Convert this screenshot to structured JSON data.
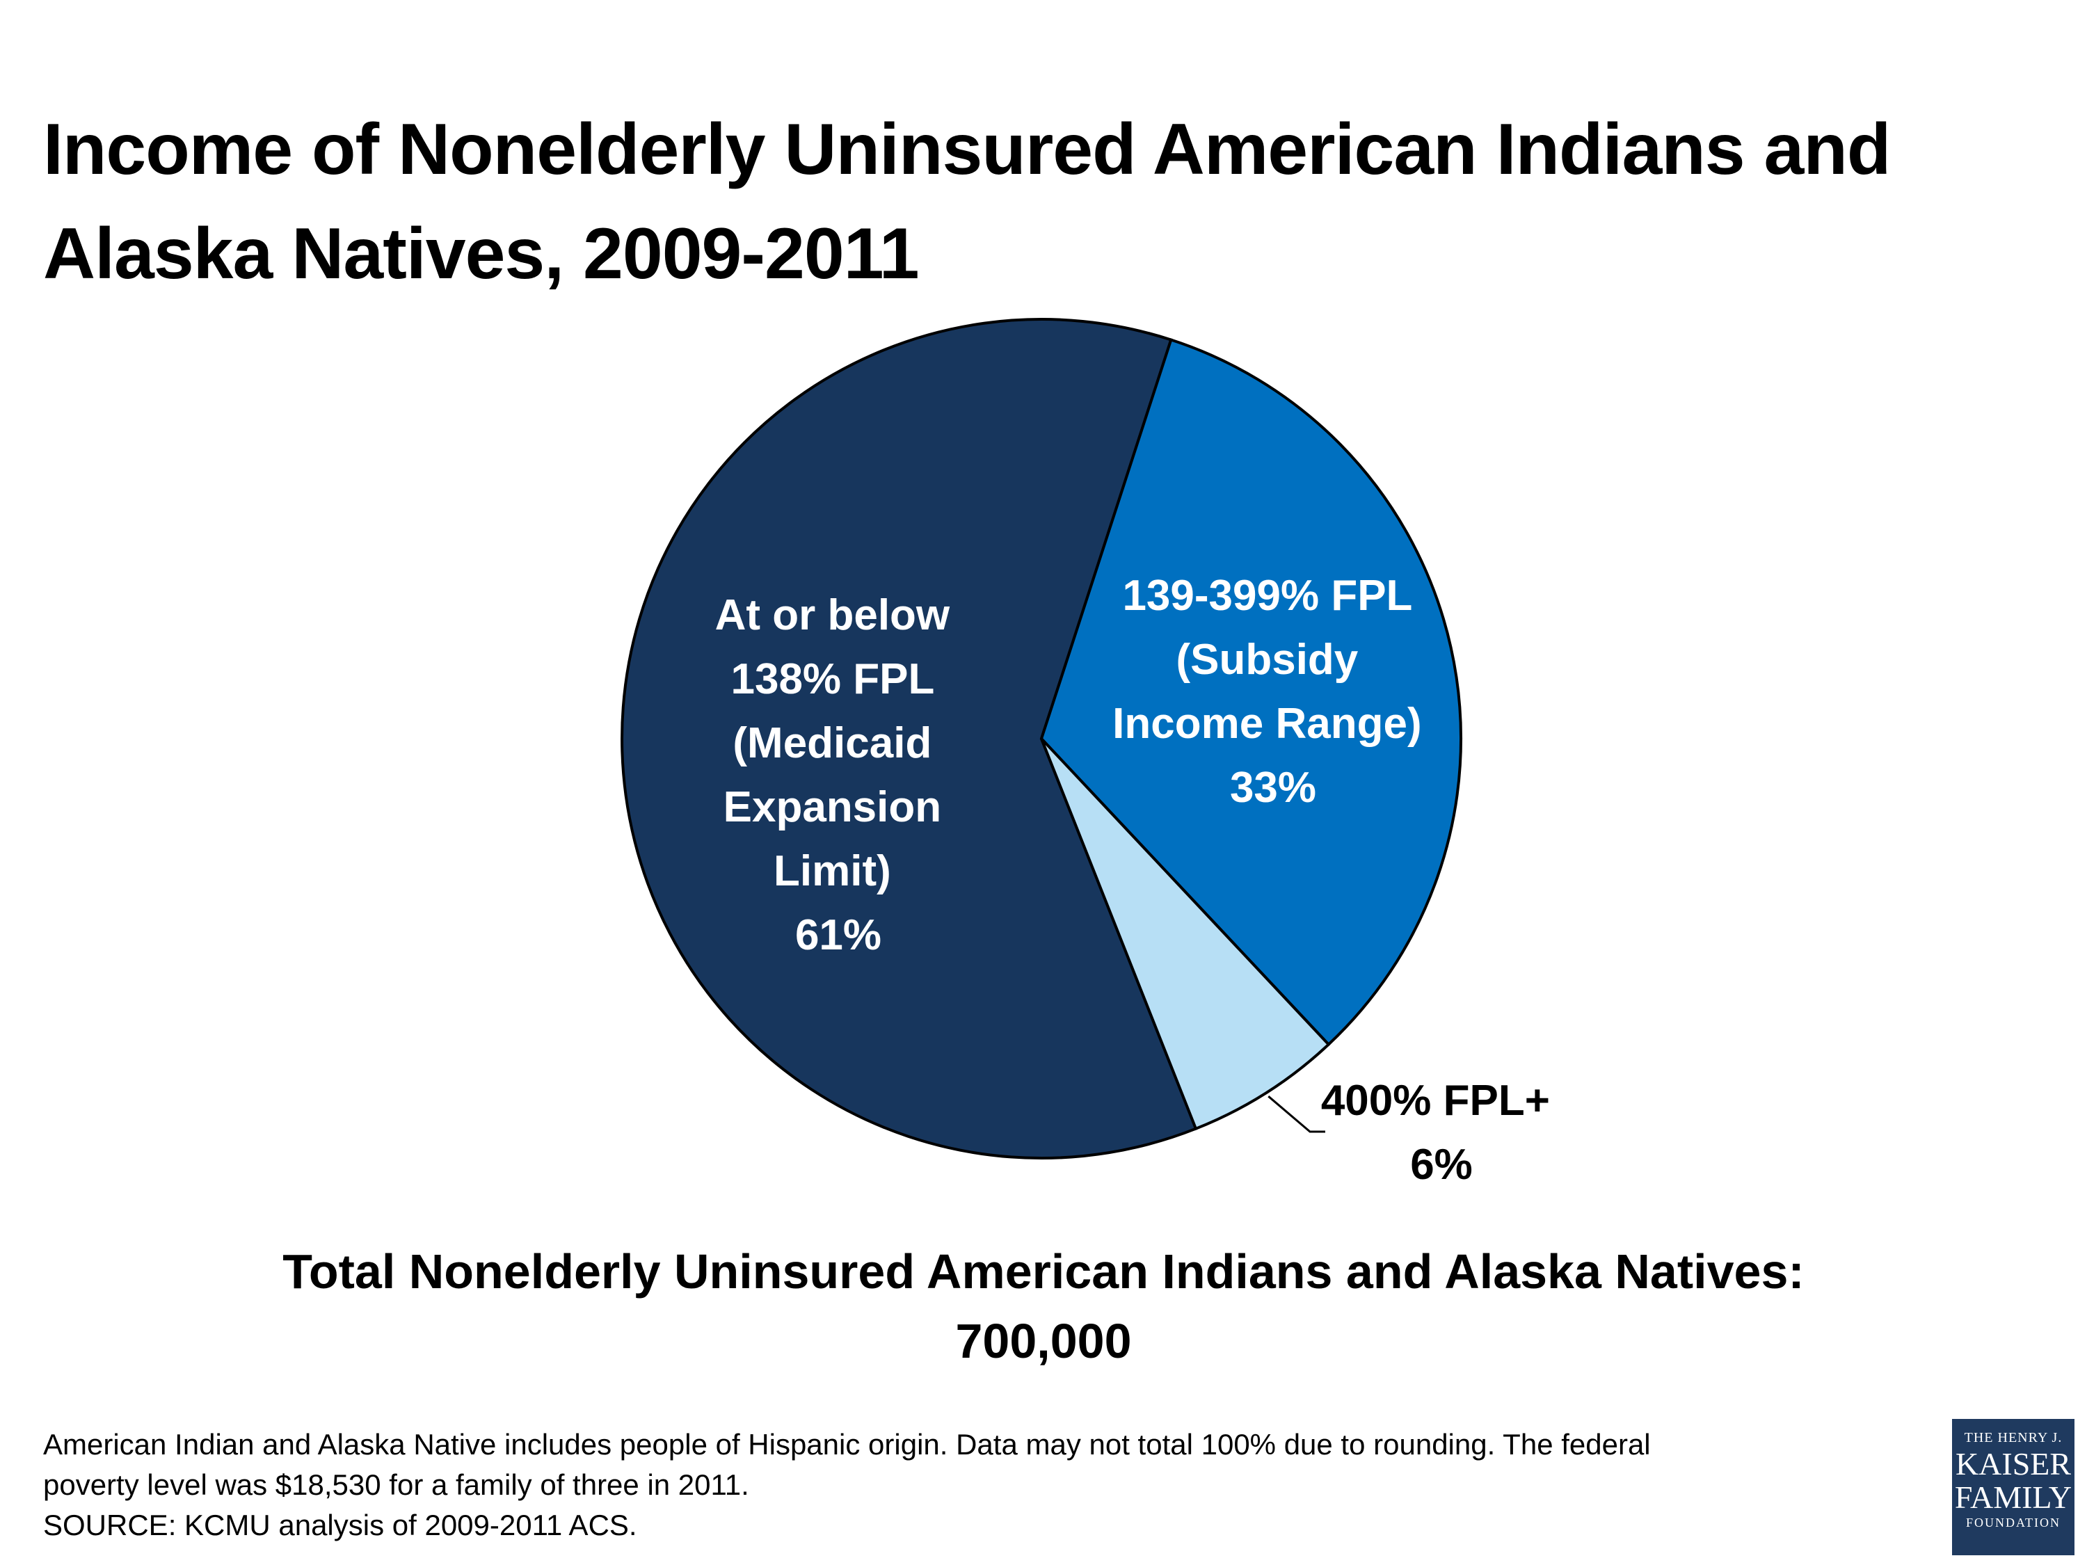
{
  "title": {
    "line1": "Income of Nonelderly Uninsured American Indians and",
    "line2": "Alaska Natives, 2009-2011"
  },
  "chart_data": {
    "type": "pie",
    "slices": [
      {
        "lines": [
          "At or below",
          "138% FPL",
          "(Medicaid",
          "Expansion",
          "Limit)",
          "61%"
        ],
        "value": 61,
        "color": "#17365d"
      },
      {
        "lines": [
          "139-399% FPL",
          "(Subsidy",
          "Income Range)",
          "33%"
        ],
        "value": 33,
        "color": "#0070c0"
      },
      {
        "lines": [
          "400% FPL+",
          "6%"
        ],
        "value": 6,
        "color": "#b7dff5"
      }
    ]
  },
  "total": {
    "line1": "Total Nonelderly Uninsured American Indians and Alaska Natives:",
    "line2": "700,000"
  },
  "footnote": {
    "line1": "American Indian and Alaska Native includes people of Hispanic origin.  Data may not total 100% due to rounding. The federal",
    "line2": "poverty level was $18,530 for a family of three  in 2011.",
    "line3": "SOURCE: KCMU analysis of 2009-2011 ACS."
  },
  "logo": {
    "line1": "THE HENRY J.",
    "line2": "KAISER",
    "line3": "FAMILY",
    "line4": "FOUNDATION"
  }
}
